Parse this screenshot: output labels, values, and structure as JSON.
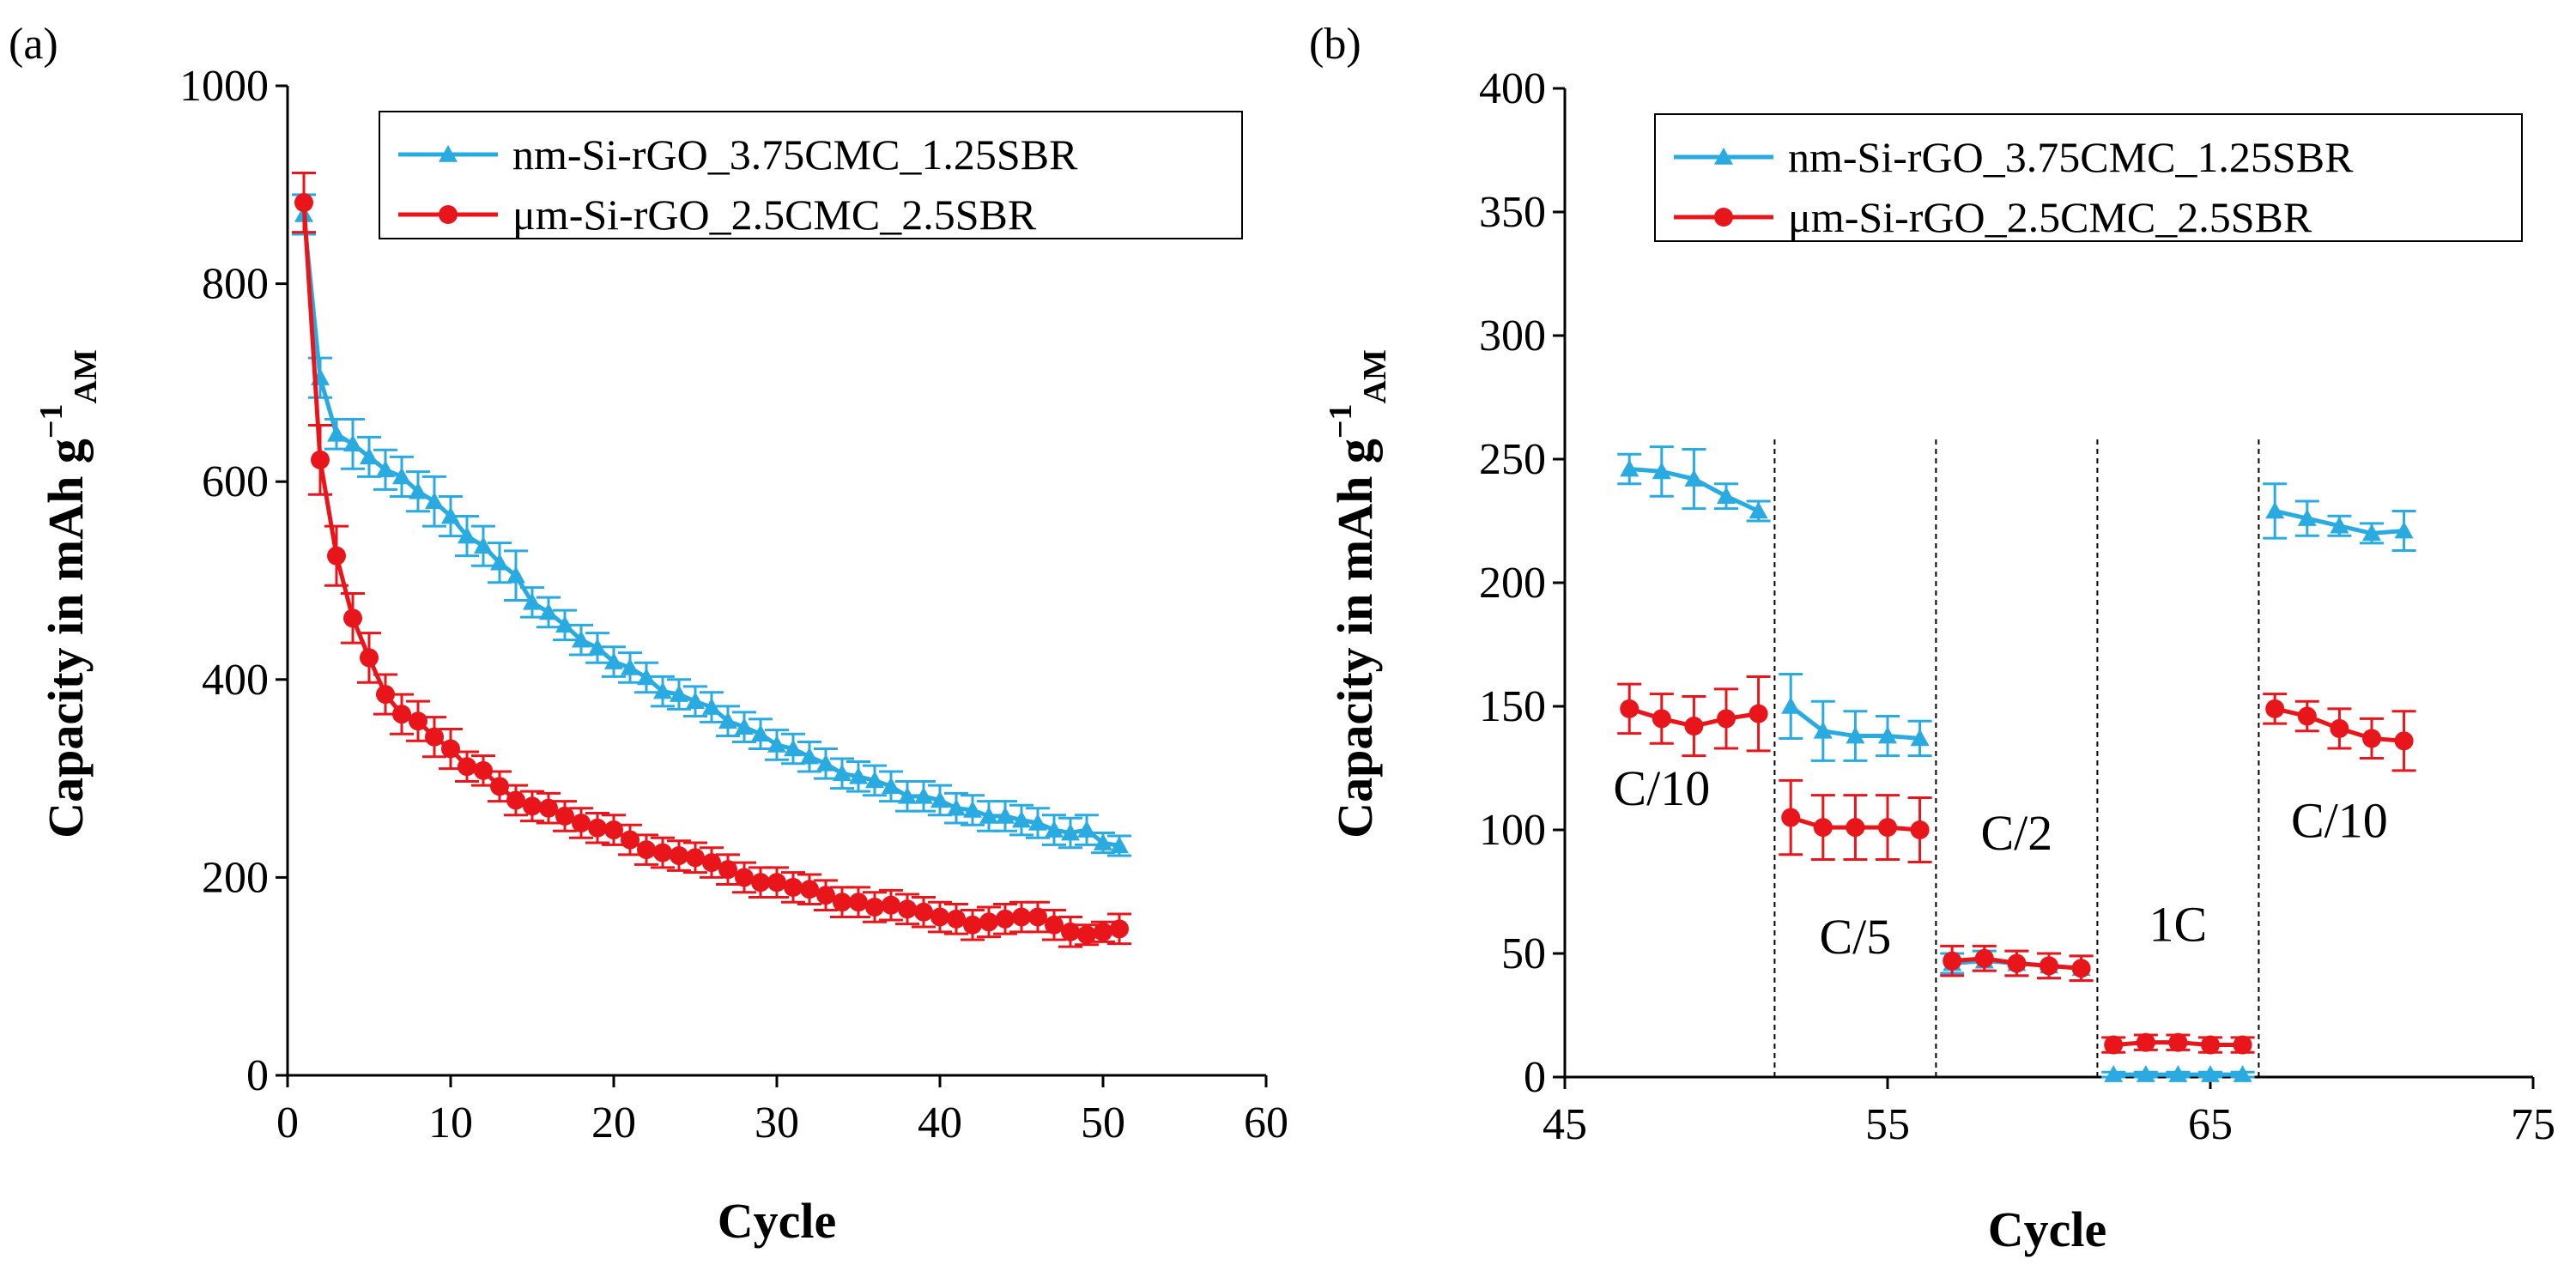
{
  "chart_data": [
    {
      "panel": "(a)",
      "type": "line",
      "xlabel": "Cycle",
      "ylabel": "Capacity in mAh g",
      "ylabel_sup": "−1",
      "ylabel_sub": "AM",
      "xlim": [
        0,
        60
      ],
      "ylim": [
        0,
        1000
      ],
      "xticks": [
        "0",
        "10",
        "20",
        "30",
        "40",
        "50",
        "60"
      ],
      "yticks": [
        "0",
        "200",
        "400",
        "600",
        "800",
        "1000"
      ],
      "legend_position": "top-right",
      "series": [
        {
          "name": "nm-Si-rGO_3.75CMC_1.25SBR",
          "color": "#29abe2",
          "marker": "triangle",
          "x": [
            1,
            2,
            3,
            4,
            5,
            6,
            7,
            8,
            9,
            10,
            11,
            12,
            13,
            14,
            15,
            16,
            17,
            18,
            19,
            20,
            21,
            22,
            23,
            24,
            25,
            26,
            27,
            28,
            29,
            30,
            31,
            32,
            33,
            34,
            35,
            36,
            37,
            38,
            39,
            40,
            41,
            42,
            43,
            44,
            45,
            46,
            47,
            48,
            49,
            50,
            51
          ],
          "values": [
            870,
            705,
            648,
            638,
            625,
            612,
            605,
            590,
            580,
            565,
            545,
            535,
            518,
            505,
            478,
            468,
            455,
            440,
            432,
            418,
            412,
            402,
            388,
            385,
            378,
            372,
            358,
            352,
            345,
            334,
            330,
            322,
            315,
            305,
            302,
            298,
            292,
            282,
            282,
            278,
            270,
            268,
            262,
            262,
            258,
            255,
            248,
            245,
            248,
            235,
            232
          ],
          "errors": [
            20,
            20,
            15,
            25,
            20,
            20,
            20,
            20,
            25,
            20,
            20,
            20,
            20,
            25,
            15,
            15,
            15,
            15,
            15,
            15,
            15,
            15,
            15,
            15,
            15,
            15,
            15,
            15,
            15,
            15,
            15,
            15,
            15,
            15,
            15,
            15,
            15,
            15,
            15,
            15,
            15,
            15,
            15,
            15,
            15,
            15,
            15,
            15,
            15,
            10,
            10
          ]
        },
        {
          "name": "μm-Si-rGO_2.5CMC_2.5SBR",
          "color": "#e8151b",
          "marker": "circle",
          "x": [
            1,
            2,
            3,
            4,
            5,
            6,
            7,
            8,
            9,
            10,
            11,
            12,
            13,
            14,
            15,
            16,
            17,
            18,
            19,
            20,
            21,
            22,
            23,
            24,
            25,
            26,
            27,
            28,
            29,
            30,
            31,
            32,
            33,
            34,
            35,
            36,
            37,
            38,
            39,
            40,
            41,
            42,
            43,
            44,
            45,
            46,
            47,
            48,
            49,
            50,
            51
          ],
          "values": [
            882,
            622,
            525,
            462,
            422,
            385,
            365,
            358,
            342,
            330,
            312,
            308,
            292,
            278,
            272,
            270,
            262,
            255,
            250,
            248,
            238,
            228,
            225,
            222,
            220,
            215,
            208,
            200,
            195,
            195,
            190,
            188,
            182,
            175,
            175,
            170,
            172,
            168,
            165,
            160,
            158,
            152,
            155,
            158,
            160,
            160,
            152,
            145,
            142,
            145,
            148
          ],
          "errors": [
            30,
            35,
            30,
            25,
            25,
            20,
            20,
            20,
            20,
            20,
            15,
            15,
            15,
            15,
            15,
            15,
            15,
            15,
            15,
            15,
            15,
            15,
            15,
            15,
            15,
            15,
            15,
            15,
            15,
            15,
            15,
            15,
            15,
            15,
            15,
            15,
            15,
            15,
            15,
            15,
            15,
            15,
            15,
            15,
            15,
            15,
            15,
            15,
            10,
            10,
            15
          ]
        }
      ]
    },
    {
      "panel": "(b)",
      "type": "line",
      "xlabel": "Cycle",
      "ylabel": "Capacity in mAh g",
      "ylabel_sup": "−1",
      "ylabel_sub": "AM",
      "xlim": [
        45,
        75
      ],
      "ylim": [
        0,
        400
      ],
      "xticks": [
        "45",
        "55",
        "65",
        "75"
      ],
      "yticks": [
        "0",
        "50",
        "100",
        "150",
        "200",
        "250",
        "300",
        "350",
        "400"
      ],
      "legend_position": "top-right",
      "dividers_x": [
        51.5,
        56.5,
        61.5,
        66.5
      ],
      "rate_labels": [
        {
          "text": "C/10",
          "x": 48,
          "y": 110
        },
        {
          "text": "C/5",
          "x": 54,
          "y": 50
        },
        {
          "text": "C/2",
          "x": 59,
          "y": 92
        },
        {
          "text": "1C",
          "x": 64,
          "y": 55
        },
        {
          "text": "C/10",
          "x": 69,
          "y": 97
        }
      ],
      "series": [
        {
          "name": "nm-Si-rGO_3.75CMC_1.25SBR",
          "color": "#29abe2",
          "marker": "triangle",
          "segments": [
            {
              "x": [
                47,
                48,
                49,
                50,
                51
              ],
              "values": [
                246,
                245,
                242,
                235,
                229
              ],
              "errors": [
                6,
                10,
                12,
                5,
                4
              ]
            },
            {
              "x": [
                52,
                53,
                54,
                55,
                56
              ],
              "values": [
                150,
                140,
                138,
                138,
                137
              ],
              "errors": [
                13,
                12,
                10,
                8,
                7
              ]
            },
            {
              "x": [
                57,
                58,
                59,
                60,
                61
              ],
              "values": [
                46,
                47,
                46,
                45,
                44
              ],
              "errors": [
                4,
                4,
                5,
                5,
                5
              ]
            },
            {
              "x": [
                62,
                63,
                64,
                65,
                66
              ],
              "values": [
                1,
                1,
                1,
                1,
                1
              ],
              "errors": [
                1,
                1,
                1,
                1,
                1
              ]
            },
            {
              "x": [
                67,
                68,
                69,
                70,
                71
              ],
              "values": [
                229,
                226,
                223,
                220,
                221
              ],
              "errors": [
                11,
                7,
                4,
                4,
                8
              ]
            }
          ]
        },
        {
          "name": "μm-Si-rGO_2.5CMC_2.5SBR",
          "color": "#e8151b",
          "marker": "circle",
          "segments": [
            {
              "x": [
                47,
                48,
                49,
                50,
                51
              ],
              "values": [
                149,
                145,
                142,
                145,
                147
              ],
              "errors": [
                10,
                10,
                12,
                12,
                15
              ]
            },
            {
              "x": [
                52,
                53,
                54,
                55,
                56
              ],
              "values": [
                105,
                101,
                101,
                101,
                100
              ],
              "errors": [
                15,
                13,
                13,
                13,
                13
              ]
            },
            {
              "x": [
                57,
                58,
                59,
                60,
                61
              ],
              "values": [
                47,
                48,
                46,
                45,
                44
              ],
              "errors": [
                6,
                5,
                5,
                5,
                5
              ]
            },
            {
              "x": [
                62,
                63,
                64,
                65,
                66
              ],
              "values": [
                13,
                14,
                14,
                13,
                13
              ],
              "errors": [
                3,
                3,
                3,
                3,
                3
              ]
            },
            {
              "x": [
                67,
                68,
                69,
                70,
                71
              ],
              "values": [
                149,
                146,
                141,
                137,
                136
              ],
              "errors": [
                6,
                6,
                8,
                8,
                12
              ]
            }
          ]
        }
      ]
    }
  ]
}
